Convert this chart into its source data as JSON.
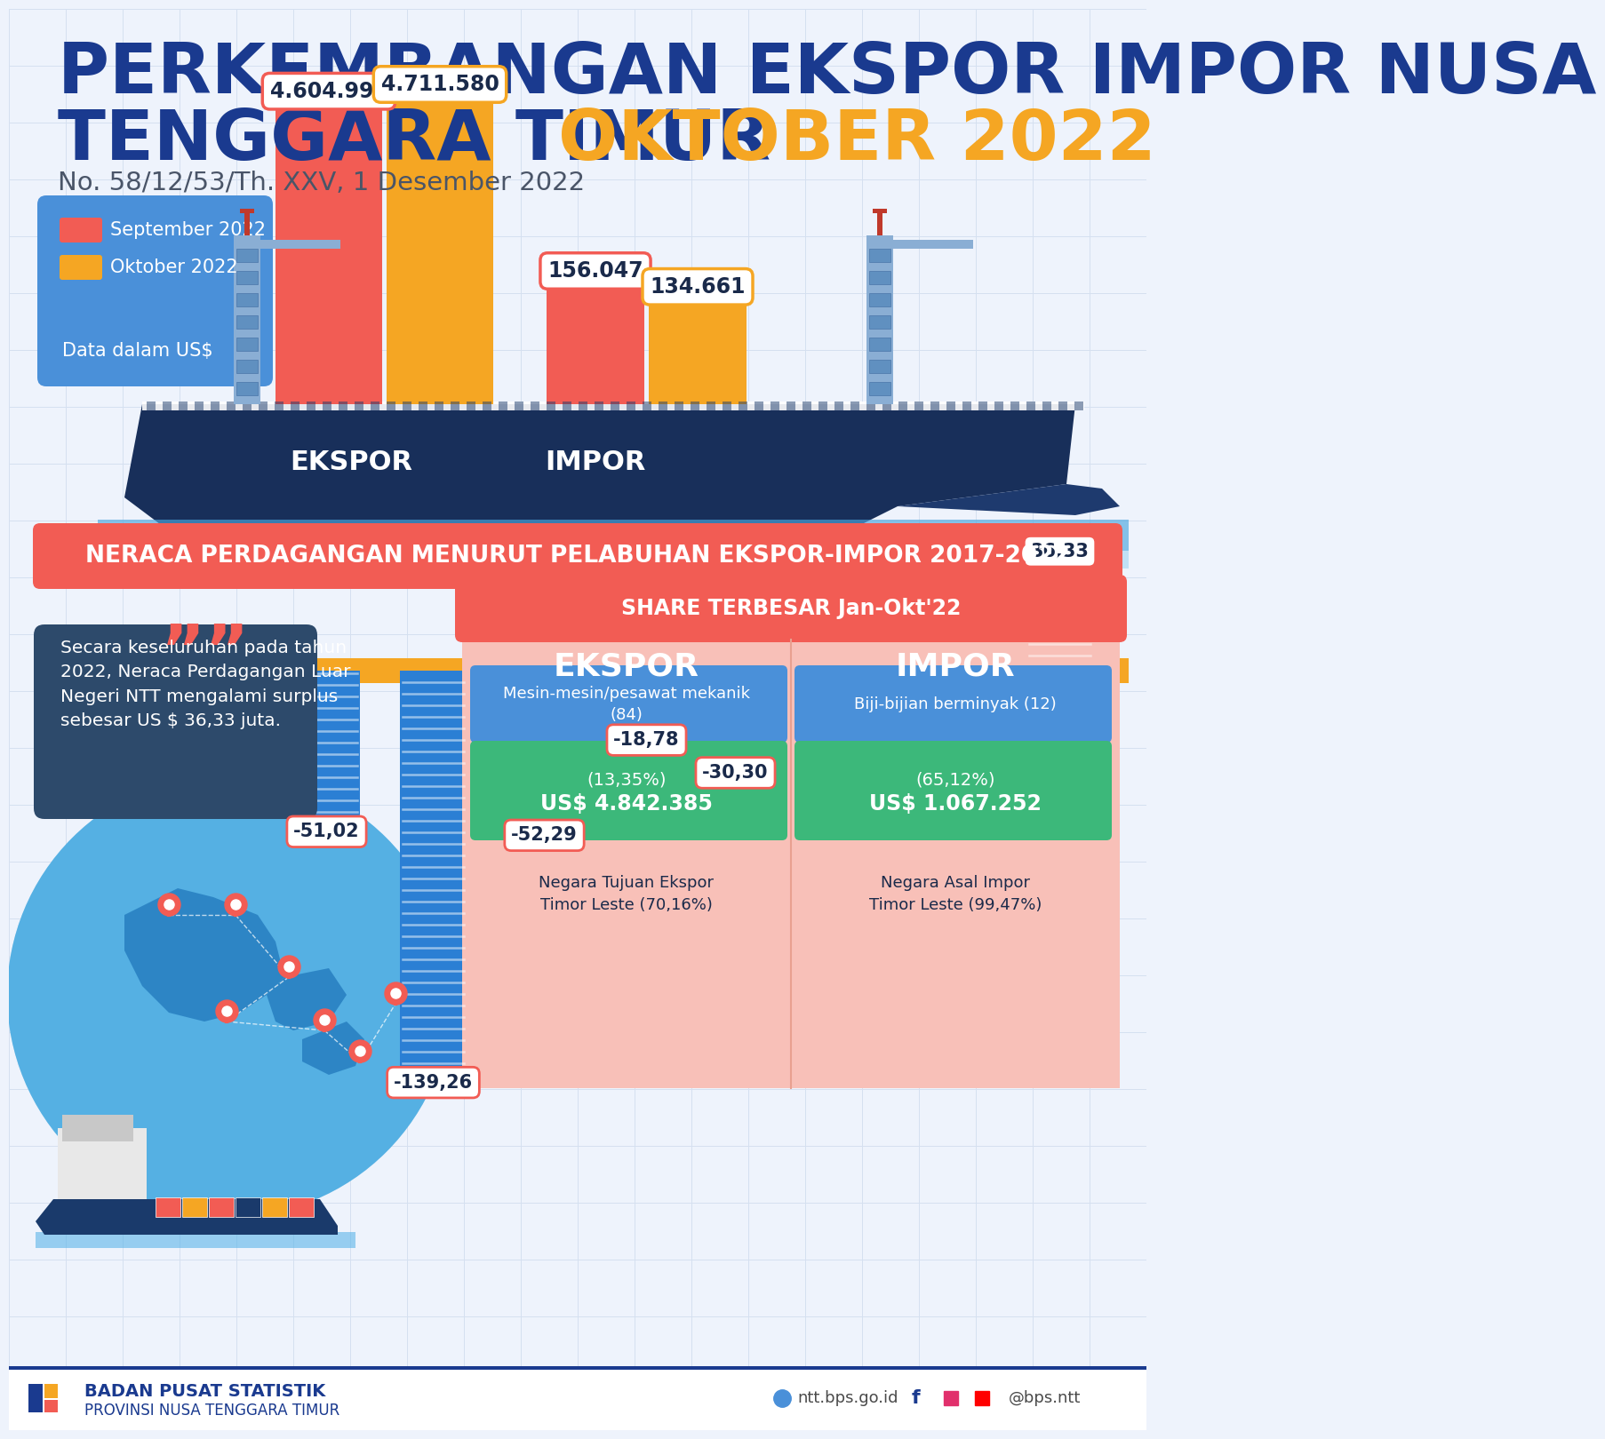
{
  "title_line1": "PERKEMBANGAN EKSPOR IMPOR NUSA",
  "title_line2_blue": "TENGGARA TIMUR ",
  "title_line2_orange": "OKTOBER 2022",
  "subtitle": "No. 58/12/53/Th. XXV, 1 Desember 2022",
  "legend_sep2022": "September 2022",
  "legend_okt2022": "Oktober 2022",
  "legend_data": "Data dalam US$",
  "ekspor_sep_label": "4.604.994",
  "ekspor_okt_label": "4.711.580",
  "impor_sep_label": "156.047",
  "impor_okt_label": "134.661",
  "bar_label_ekspor": "EKSPOR",
  "bar_label_impor": "IMPOR",
  "color_sep": "#F25C54",
  "color_okt": "#F5A623",
  "color_blue_dark": "#1A3A6B",
  "color_blue_mid": "#2E6CB5",
  "color_blue_light": "#5B9BD5",
  "color_blue_bg": "#4A90D9",
  "color_orange": "#F5A623",
  "color_red": "#F25C54",
  "bg_color": "#EEF3FC",
  "grid_color": "#D5E0F0",
  "neraca_title": "NERACA PERDAGANGAN MENURUT PELABUHAN EKSPOR-IMPOR 2017-2022",
  "neraca_values": [
    -51.02,
    -139.26,
    -52.29,
    -18.78,
    -30.3,
    36.33
  ],
  "neraca_labels": [
    "-51,02",
    "-139,26",
    "-52,29",
    "-18,78",
    "-30,30",
    "36,33"
  ],
  "quote_text": "Secara keseluruhan pada tahun\n2022, Neraca Perdagangan Luar\nNegeri NTT mengalami surplus\nsebesar US $ 36,33 juta.",
  "share_title": "SHARE TERBESAR Jan-Okt'22",
  "ekspor_share_label": "EKSPOR",
  "impor_share_label": "IMPOR",
  "ekspor_commodity": "Mesin-mesin/pesawat mekanik\n(84)",
  "ekspor_value_line1": "US$ 4.842.385",
  "ekspor_value_line2": "(13,35%)",
  "ekspor_country": "Negara Tujuan Ekspor\nTimor Leste (70,16%)",
  "impor_commodity": "Biji-bijian berminyak (12)",
  "impor_value_line1": "US$ 1.067.252",
  "impor_value_line2": "(65,12%)",
  "impor_country": "Negara Asal Impor\nTimor Leste (99,47%)",
  "footer_left1": "BADAN PUSAT STATISTIK",
  "footer_left2": "PROVINSI NUSA TENGGARA TIMUR",
  "footer_website": "ntt.bps.go.id",
  "footer_social": "@bps.ntt"
}
